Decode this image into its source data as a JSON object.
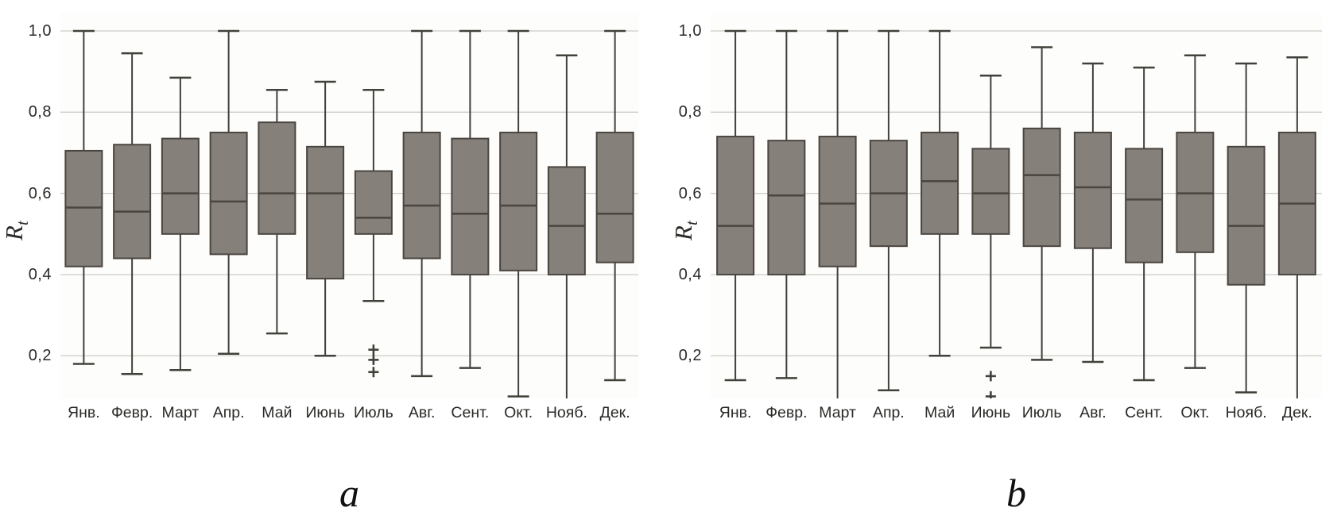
{
  "figure": {
    "background": "#ffffff",
    "plot_background": "#fdfdfb",
    "colors": {
      "box_fill": "#86807a",
      "box_stroke": "#4b4540",
      "whisker": "#42403b",
      "gridline": "#cbcbc8",
      "plot_border": "#a9a8a4",
      "text": "#2b2a27"
    }
  },
  "chart_data": [
    {
      "type": "boxplot",
      "caption": "a",
      "ylabel": "Rt",
      "ylabel_main": "R",
      "ylabel_sub": "t",
      "ylim": [
        0.095,
        1.045
      ],
      "grid": true,
      "yticks": [
        1.0,
        0.8,
        0.6,
        0.4,
        0.2
      ],
      "ytick_labels": [
        "1,0",
        "0,8",
        "0,6",
        "0,4",
        "0,2"
      ],
      "categories": [
        "Янв.",
        "Февр.",
        "Март",
        "Апр.",
        "Май",
        "Июнь",
        "Июль",
        "Авг.",
        "Сент.",
        "Окт.",
        "Нояб.",
        "Дек."
      ],
      "boxes": [
        {
          "lo": 0.18,
          "q1": 0.42,
          "med": 0.565,
          "q3": 0.705,
          "hi": 1.0,
          "outliers": []
        },
        {
          "lo": 0.155,
          "q1": 0.44,
          "med": 0.555,
          "q3": 0.72,
          "hi": 0.945,
          "outliers": []
        },
        {
          "lo": 0.165,
          "q1": 0.5,
          "med": 0.6,
          "q3": 0.735,
          "hi": 0.885,
          "outliers": []
        },
        {
          "lo": 0.205,
          "q1": 0.45,
          "med": 0.58,
          "q3": 0.75,
          "hi": 1.0,
          "outliers": []
        },
        {
          "lo": 0.255,
          "q1": 0.5,
          "med": 0.6,
          "q3": 0.775,
          "hi": 0.855,
          "outliers": []
        },
        {
          "lo": 0.2,
          "q1": 0.39,
          "med": 0.6,
          "q3": 0.715,
          "hi": 0.875,
          "outliers": []
        },
        {
          "lo": 0.335,
          "q1": 0.5,
          "med": 0.54,
          "q3": 0.655,
          "hi": 0.855,
          "outliers": [
            0.215,
            0.19,
            0.16
          ]
        },
        {
          "lo": 0.15,
          "q1": 0.44,
          "med": 0.57,
          "q3": 0.75,
          "hi": 1.0,
          "outliers": []
        },
        {
          "lo": 0.17,
          "q1": 0.4,
          "med": 0.55,
          "q3": 0.735,
          "hi": 1.0,
          "outliers": []
        },
        {
          "lo": 0.1,
          "q1": 0.41,
          "med": 0.57,
          "q3": 0.75,
          "hi": 1.0,
          "outliers": []
        },
        {
          "lo": 0.085,
          "q1": 0.4,
          "med": 0.52,
          "q3": 0.665,
          "hi": 0.94,
          "outliers": []
        },
        {
          "lo": 0.14,
          "q1": 0.43,
          "med": 0.55,
          "q3": 0.75,
          "hi": 1.0,
          "outliers": []
        }
      ]
    },
    {
      "type": "boxplot",
      "caption": "b",
      "ylabel": "Rt",
      "ylabel_main": "R",
      "ylabel_sub": "t",
      "ylim": [
        0.095,
        1.045
      ],
      "grid": true,
      "yticks": [
        1.0,
        0.8,
        0.6,
        0.4,
        0.2
      ],
      "ytick_labels": [
        "1,0",
        "0,8",
        "0,6",
        "0,4",
        "0,2"
      ],
      "categories": [
        "Янв.",
        "Февр.",
        "Март",
        "Апр.",
        "Май",
        "Июнь",
        "Июль",
        "Авг.",
        "Сент.",
        "Окт.",
        "Нояб.",
        "Дек."
      ],
      "boxes": [
        {
          "lo": 0.14,
          "q1": 0.4,
          "med": 0.52,
          "q3": 0.74,
          "hi": 1.0,
          "outliers": []
        },
        {
          "lo": 0.145,
          "q1": 0.4,
          "med": 0.595,
          "q3": 0.73,
          "hi": 1.0,
          "outliers": []
        },
        {
          "lo": 0.08,
          "q1": 0.42,
          "med": 0.575,
          "q3": 0.74,
          "hi": 1.0,
          "outliers": []
        },
        {
          "lo": 0.115,
          "q1": 0.47,
          "med": 0.6,
          "q3": 0.73,
          "hi": 1.0,
          "outliers": []
        },
        {
          "lo": 0.2,
          "q1": 0.5,
          "med": 0.63,
          "q3": 0.75,
          "hi": 1.0,
          "outliers": []
        },
        {
          "lo": 0.22,
          "q1": 0.5,
          "med": 0.6,
          "q3": 0.71,
          "hi": 0.89,
          "outliers": [
            0.15,
            0.1
          ]
        },
        {
          "lo": 0.19,
          "q1": 0.47,
          "med": 0.645,
          "q3": 0.76,
          "hi": 0.96,
          "outliers": []
        },
        {
          "lo": 0.185,
          "q1": 0.465,
          "med": 0.615,
          "q3": 0.75,
          "hi": 0.92,
          "outliers": []
        },
        {
          "lo": 0.14,
          "q1": 0.43,
          "med": 0.585,
          "q3": 0.71,
          "hi": 0.91,
          "outliers": []
        },
        {
          "lo": 0.17,
          "q1": 0.455,
          "med": 0.6,
          "q3": 0.75,
          "hi": 0.94,
          "outliers": []
        },
        {
          "lo": 0.11,
          "q1": 0.375,
          "med": 0.52,
          "q3": 0.715,
          "hi": 0.92,
          "outliers": []
        },
        {
          "lo": 0.08,
          "q1": 0.4,
          "med": 0.575,
          "q3": 0.75,
          "hi": 0.935,
          "outliers": []
        }
      ]
    }
  ]
}
